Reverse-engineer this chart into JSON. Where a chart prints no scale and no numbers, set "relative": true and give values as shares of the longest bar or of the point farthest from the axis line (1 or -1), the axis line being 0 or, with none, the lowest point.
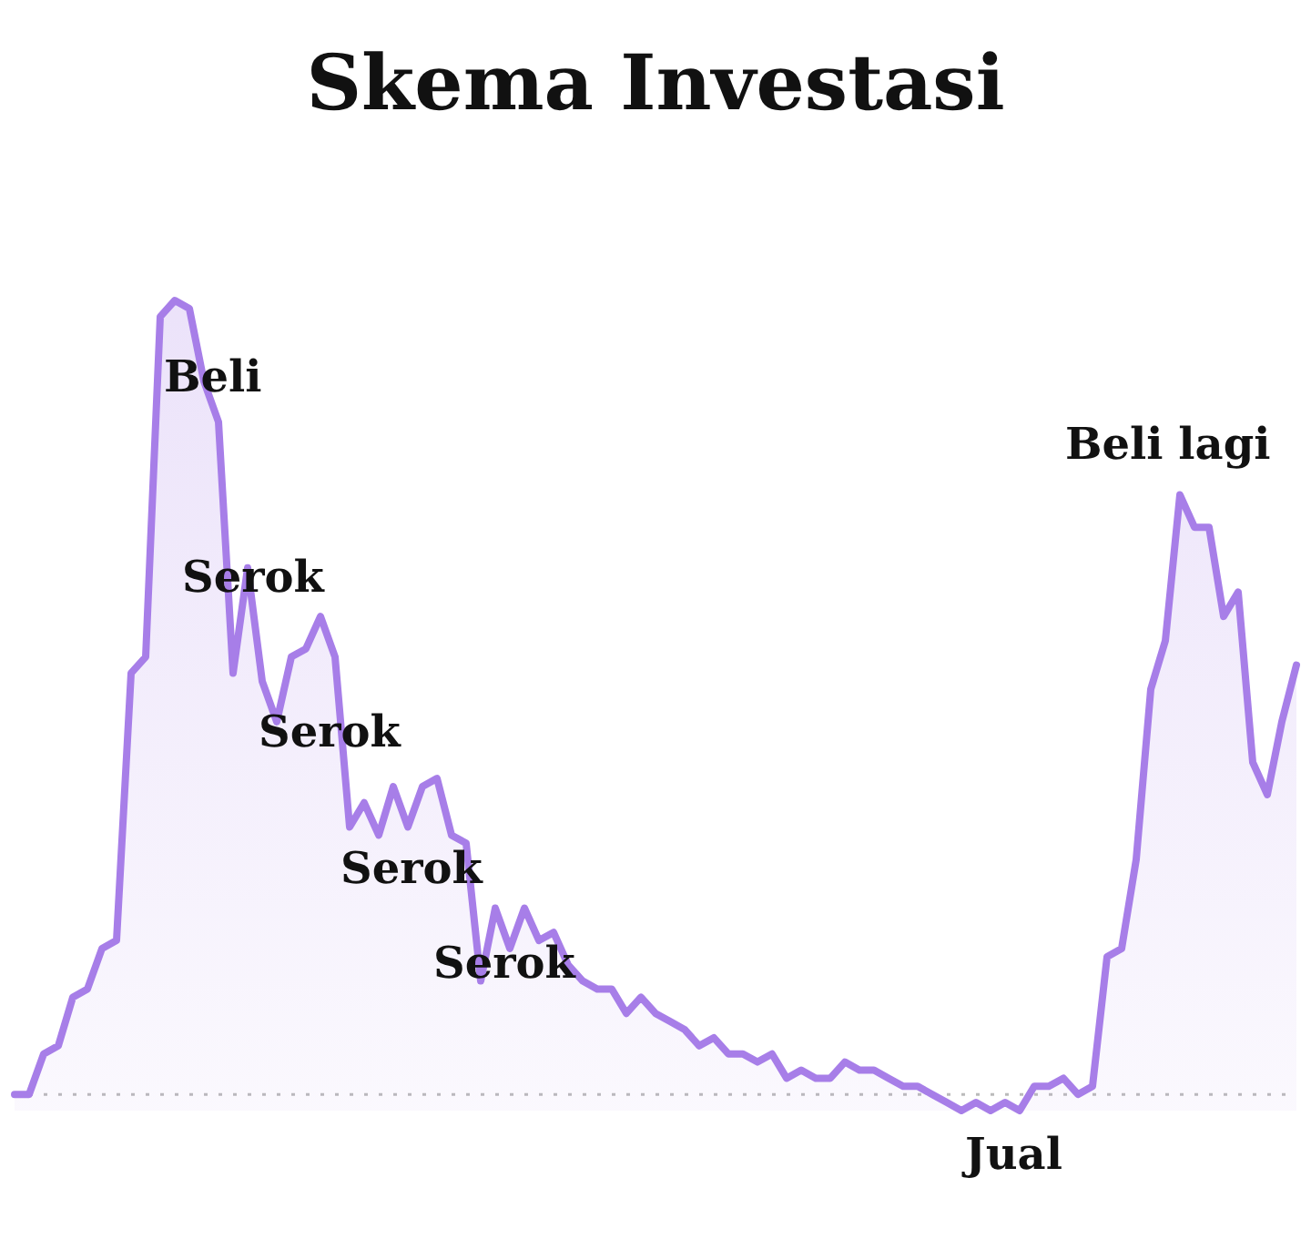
{
  "chart_data": {
    "type": "area",
    "title": "Skema Investasi",
    "relative": true,
    "categories": [
      null,
      null,
      null,
      null,
      null,
      null,
      null,
      null,
      null,
      null,
      null,
      null,
      null,
      null,
      null,
      null,
      null,
      null,
      null,
      null,
      null,
      null,
      null,
      null,
      null,
      null,
      null,
      null,
      null,
      null,
      null,
      null,
      null,
      null,
      null,
      null,
      null,
      null,
      null,
      null,
      null,
      null,
      null,
      null,
      null,
      null,
      null,
      null,
      null,
      null,
      null,
      null,
      null,
      null,
      null,
      null,
      null,
      null,
      null,
      null,
      null,
      null,
      null,
      null,
      null,
      null,
      null,
      null,
      null,
      null,
      null,
      null,
      null,
      null,
      null,
      null,
      null,
      null,
      null,
      null,
      null,
      null,
      null,
      null,
      null,
      null,
      null,
      null,
      null
    ],
    "series": [
      {
        "color": "#a77ee8",
        "values": [
          0.02,
          0.02,
          0.07,
          0.08,
          0.14,
          0.15,
          0.2,
          0.21,
          0.54,
          0.56,
          0.98,
          1,
          0.99,
          0.9,
          0.85,
          0.54,
          0.67,
          0.53,
          0.48,
          0.56,
          0.57,
          0.61,
          0.56,
          0.35,
          0.38,
          0.34,
          0.4,
          0.35,
          0.4,
          0.41,
          0.34,
          0.33,
          0.16,
          0.25,
          0.2,
          0.25,
          0.21,
          0.22,
          0.18,
          0.16,
          0.15,
          0.15,
          0.12,
          0.14,
          0.12,
          0.11,
          0.1,
          0.08,
          0.09,
          0.07,
          0.07,
          0.06,
          0.07,
          0.04,
          0.05,
          0.04,
          0.04,
          0.06,
          0.05,
          0.05,
          0.04,
          0.03,
          0.03,
          0.02,
          0.01,
          0,
          0.01,
          0,
          0.01,
          0,
          0.03,
          0.03,
          0.04,
          0.02,
          0.03,
          0.19,
          0.2,
          0.31,
          0.52,
          0.58,
          0.76,
          0.72,
          0.72,
          0.61,
          0.64,
          0.43,
          0.39,
          0.48,
          0.55
        ]
      }
    ],
    "ref_lines": [
      {
        "axis": "y",
        "value": 0.02,
        "color": "#bbbbbb",
        "line_style": "dotted"
      }
    ],
    "annotations": [
      "Beli",
      "Serok",
      "Serok",
      "Serok",
      "Serok",
      "Beli lagi",
      "Jual"
    ]
  }
}
